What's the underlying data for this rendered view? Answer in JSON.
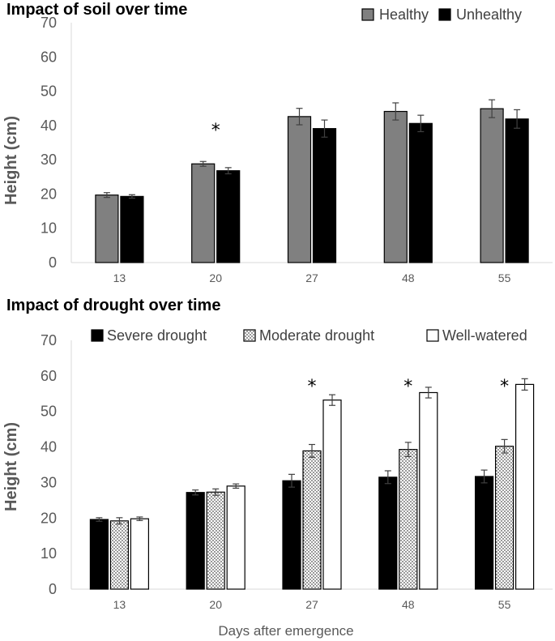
{
  "chart_data": [
    {
      "type": "bar",
      "title": "Impact of soil over time",
      "xlabel": "",
      "ylabel": "Height (cm)",
      "ylim": [
        0,
        70
      ],
      "yticks": [
        "0",
        "10",
        "20",
        "30",
        "40",
        "50",
        "60",
        "70"
      ],
      "categories": [
        "13",
        "20",
        "27",
        "48",
        "55"
      ],
      "legend_position": "top-right",
      "series": [
        {
          "name": "Healthy",
          "color": "#808080",
          "pattern": "solid",
          "values": [
            19.7,
            28.8,
            42.6,
            44.1,
            44.9
          ],
          "errors": [
            0.7,
            0.7,
            2.4,
            2.5,
            2.6
          ]
        },
        {
          "name": "Unhealthy",
          "color": "#000000",
          "pattern": "solid",
          "values": [
            19.3,
            26.8,
            39.1,
            40.6,
            41.9
          ],
          "errors": [
            0.5,
            0.9,
            2.5,
            2.4,
            2.7
          ]
        }
      ],
      "annotations": [
        {
          "category": "20",
          "text": "*"
        }
      ]
    },
    {
      "type": "bar",
      "title": "Impact of drought over time",
      "xlabel": "Days after emergence",
      "ylabel": "Height (cm)",
      "ylim": [
        0,
        70
      ],
      "yticks": [
        "0",
        "10",
        "20",
        "30",
        "40",
        "50",
        "60",
        "70"
      ],
      "categories": [
        "13",
        "20",
        "27",
        "48",
        "55"
      ],
      "legend_position": "top",
      "series": [
        {
          "name": "Severe drought",
          "color": "#000000",
          "pattern": "solid",
          "values": [
            19.6,
            27.2,
            30.5,
            31.5,
            31.7
          ],
          "errors": [
            0.5,
            0.7,
            1.8,
            1.8,
            1.8
          ]
        },
        {
          "name": "Moderate drought",
          "color": "#ffffff",
          "pattern": "dots",
          "values": [
            19.2,
            27.3,
            38.9,
            39.3,
            40.2
          ],
          "errors": [
            0.9,
            0.9,
            1.8,
            2.0,
            1.9
          ]
        },
        {
          "name": "Well-watered",
          "color": "#ffffff",
          "pattern": "solid",
          "values": [
            19.8,
            29.0,
            53.2,
            55.3,
            57.6
          ],
          "errors": [
            0.5,
            0.6,
            1.5,
            1.5,
            1.6
          ]
        }
      ],
      "annotations": [
        {
          "category": "27",
          "text": "*"
        },
        {
          "category": "48",
          "text": "*"
        },
        {
          "category": "55",
          "text": "*"
        }
      ]
    }
  ]
}
